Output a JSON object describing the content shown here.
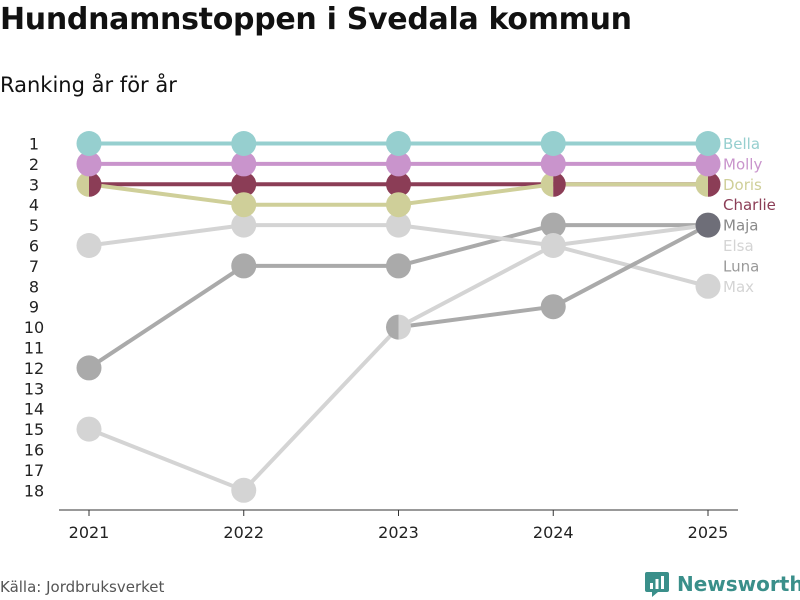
{
  "chart_data": {
    "type": "line",
    "title": "Hundnamnstoppen i Svedala kommun",
    "subtitle": "Ranking år för år",
    "xlabel": "",
    "ylabel": "",
    "x": [
      "2021",
      "2022",
      "2023",
      "2024",
      "2025"
    ],
    "ylim": [
      1,
      18
    ],
    "y_reversed": true,
    "y_ticks": [
      "1",
      "2",
      "3",
      "4",
      "5",
      "6",
      "7",
      "8",
      "9",
      "10",
      "11",
      "12",
      "13",
      "14",
      "15",
      "16",
      "17",
      "18"
    ],
    "grid": false,
    "legend": "end-labels-right",
    "series": [
      {
        "name": "Luna",
        "color": "#aaaaaa",
        "values": [
          12,
          7,
          7,
          5,
          5
        ]
      },
      {
        "name": "Max",
        "color": "#d4d4d4",
        "values": [
          6,
          5,
          5,
          6,
          8
        ]
      },
      {
        "name": "Elsa",
        "color": "#d4d4d4",
        "values": [
          15,
          18,
          10,
          6,
          5
        ]
      },
      {
        "name": "Maja",
        "color": "#aaaaaa",
        "values": [
          null,
          null,
          10,
          9,
          5
        ]
      },
      {
        "name": "Charlie",
        "color": "#8b3d56",
        "values": [
          3,
          3,
          3,
          3,
          3
        ]
      },
      {
        "name": "Doris",
        "color": "#cfcf99",
        "values": [
          3,
          4,
          4,
          3,
          3
        ]
      },
      {
        "name": "Molly",
        "color": "#c994cc",
        "values": [
          2,
          2,
          2,
          2,
          2
        ]
      },
      {
        "name": "Bella",
        "color": "#96cfcf",
        "values": [
          1,
          1,
          1,
          1,
          1
        ]
      }
    ],
    "highlight_marker": {
      "series": "Maja",
      "year": "2025",
      "color": "#6e6e78"
    },
    "end_labels": [
      {
        "name": "Bella",
        "rank": 1,
        "color": "#96cfcf"
      },
      {
        "name": "Molly",
        "rank": 2,
        "color": "#c994cc"
      },
      {
        "name": "Doris",
        "rank": 3,
        "color": "#cfcf99"
      },
      {
        "name": "Charlie",
        "rank": 4,
        "color": "#8b3d56"
      },
      {
        "name": "Maja",
        "rank": 5,
        "color": "#8a8a8a"
      },
      {
        "name": "Elsa",
        "rank": 6,
        "color": "#d4d4d4"
      },
      {
        "name": "Luna",
        "rank": 7,
        "color": "#9a9a9a"
      },
      {
        "name": "Max",
        "rank": 8,
        "color": "#d4d4d4"
      }
    ]
  },
  "footer": {
    "source": "Källa: Jordbruksverket",
    "brand": "Newsworthy"
  },
  "colors": {
    "brand": "#3a8f8a",
    "axis": "#333333"
  }
}
